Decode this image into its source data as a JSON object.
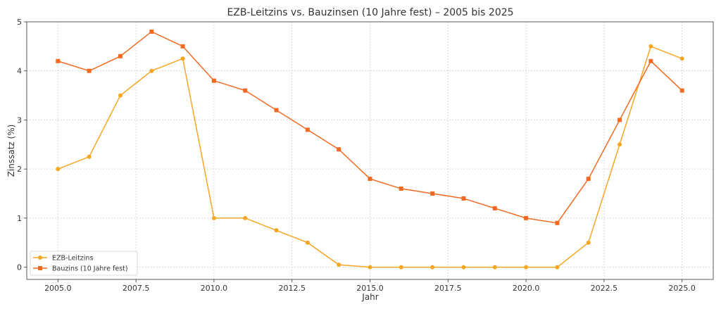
{
  "chart_data": {
    "type": "line",
    "title": "EZB-Leitzins vs. Bauzinsen (10 Jahre fest) – 2005 bis 2025",
    "xlabel": "Jahr",
    "ylabel": "Zinssatz (%)",
    "xlim": [
      2004.0,
      2026.0
    ],
    "ylim": [
      -0.25,
      5.0
    ],
    "xticks": [
      2005.0,
      2007.5,
      2010.0,
      2012.5,
      2015.0,
      2017.5,
      2020.0,
      2022.5,
      2025.0
    ],
    "xtick_labels": [
      "2005.0",
      "2007.5",
      "2010.0",
      "2012.5",
      "2015.0",
      "2017.5",
      "2020.0",
      "2022.5",
      "2025.0"
    ],
    "yticks": [
      0,
      1,
      2,
      3,
      4,
      5
    ],
    "ytick_labels": [
      "0",
      "1",
      "2",
      "3",
      "4",
      "5"
    ],
    "grid": true,
    "legend_position": "lower-left",
    "x": [
      2005,
      2006,
      2007,
      2008,
      2009,
      2010,
      2011,
      2012,
      2013,
      2014,
      2015,
      2016,
      2017,
      2018,
      2019,
      2020,
      2021,
      2022,
      2023,
      2024,
      2025
    ],
    "series": [
      {
        "name": "EZB-Leitzins",
        "color": "#f5a623",
        "marker": "circle",
        "values": [
          2.0,
          2.25,
          3.5,
          4.0,
          4.25,
          1.0,
          1.0,
          0.75,
          0.5,
          0.05,
          0.0,
          0.0,
          0.0,
          0.0,
          0.0,
          0.0,
          0.0,
          0.5,
          2.5,
          4.5,
          4.25
        ]
      },
      {
        "name": "Bauzins (10 Jahre fest)",
        "color": "#f26a21",
        "marker": "square",
        "values": [
          4.2,
          4.0,
          4.3,
          4.8,
          4.5,
          3.8,
          3.6,
          3.2,
          2.8,
          2.4,
          1.8,
          1.6,
          1.5,
          1.4,
          1.2,
          1.0,
          0.9,
          1.8,
          3.0,
          4.2,
          3.6
        ]
      }
    ]
  }
}
